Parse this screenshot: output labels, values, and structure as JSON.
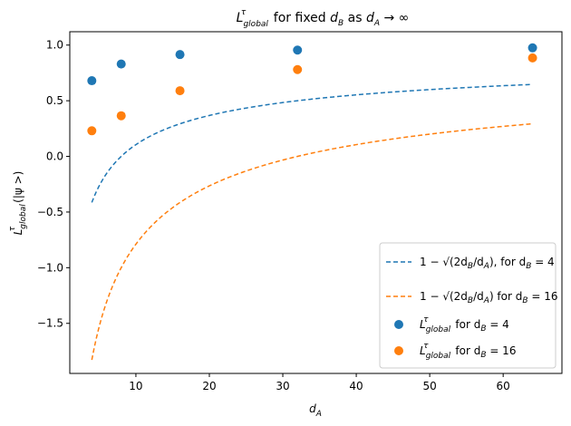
{
  "chart_data": {
    "type": "scatter",
    "title": "L^τ_global for fixed d_B as d_A → ∞",
    "xlabel": "d_A",
    "ylabel": "L^τ_global(|ψ>)",
    "xlim": [
      1,
      68
    ],
    "ylim": [
      -1.95,
      1.12
    ],
    "xticks": [
      10,
      20,
      30,
      40,
      50,
      60
    ],
    "xtick_labels": [
      "10",
      "20",
      "30",
      "40",
      "50",
      "60"
    ],
    "yticks": [
      -1.5,
      -1.0,
      -0.5,
      0.0,
      0.5,
      1.0
    ],
    "ytick_labels": [
      "−1.5",
      "−1.0",
      "−0.5",
      "0.0",
      "0.5",
      "1.0"
    ],
    "grid": false,
    "legend_position": "lower-right",
    "colors": {
      "blue": "#1f77b4",
      "orange": "#ff7f0e"
    },
    "series": [
      {
        "name": "1 − √(2d_B/d_A), for d_B = 4",
        "kind": "dashed-line",
        "color": "#1f77b4",
        "d_B": 4,
        "x_range": [
          4,
          64
        ]
      },
      {
        "name": "1 − √(2d_B/d_A) for d_B = 16",
        "kind": "dashed-line",
        "color": "#ff7f0e",
        "d_B": 16,
        "x_range": [
          4,
          64
        ]
      },
      {
        "name": "L^τ_global for d_B = 4",
        "kind": "points",
        "color": "#1f77b4",
        "x": [
          4,
          8,
          16,
          32,
          64
        ],
        "y": [
          0.68,
          0.83,
          0.915,
          0.955,
          0.975
        ]
      },
      {
        "name": "L^τ_global for d_B = 16",
        "kind": "points",
        "color": "#ff7f0e",
        "x": [
          4,
          8,
          16,
          32,
          64
        ],
        "y": [
          0.23,
          0.365,
          0.59,
          0.78,
          0.885
        ]
      }
    ]
  }
}
